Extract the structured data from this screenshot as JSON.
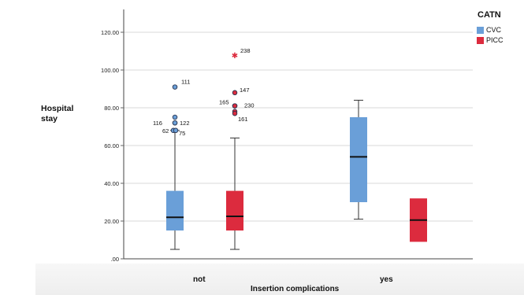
{
  "chart_data": {
    "type": "boxplot",
    "title": "",
    "ylabel": "Hospital stay",
    "xlabel": "Insertion complications",
    "ylim": [
      0,
      130
    ],
    "yticks": [
      0,
      20,
      40,
      60,
      80,
      100,
      120
    ],
    "ytick_labels": [
      ".00",
      "20.00",
      "40.00",
      "60.00",
      "80.00",
      "100.00",
      "120.00"
    ],
    "grid": "horizontal",
    "categories": [
      "not",
      "yes"
    ],
    "legend": {
      "title": "CATN",
      "placement": "top-right",
      "entries": [
        {
          "name": "CVC",
          "color": "#6a9fd8"
        },
        {
          "name": "PICC",
          "color": "#dc2b3e"
        }
      ]
    },
    "series": [
      {
        "name": "CVC",
        "color": "#6a9fd8",
        "boxes": [
          {
            "category": "not",
            "min": 5,
            "q1": 15,
            "median": 22,
            "q3": 36,
            "max": 68,
            "outliers": [
              {
                "value": 91,
                "label": "111",
                "type": "circle"
              },
              {
                "value": 75,
                "label": "",
                "type": "circle"
              },
              {
                "value": 72,
                "label": "116",
                "type": "circle"
              },
              {
                "value": 72,
                "label": "122",
                "type": "circle"
              },
              {
                "value": 68,
                "label": "62",
                "type": "circle"
              },
              {
                "value": 68,
                "label": "75",
                "type": "circle"
              }
            ]
          },
          {
            "category": "yes",
            "min": 21,
            "q1": 30,
            "median": 54,
            "q3": 75,
            "max": 84,
            "outliers": []
          }
        ]
      },
      {
        "name": "PICC",
        "color": "#dc2b3e",
        "boxes": [
          {
            "category": "not",
            "min": 5,
            "q1": 15,
            "median": 22.5,
            "q3": 36,
            "max": 64,
            "outliers": [
              {
                "value": 108,
                "label": "238",
                "type": "star"
              },
              {
                "value": 88,
                "label": "147",
                "type": "circle"
              },
              {
                "value": 81,
                "label": "165",
                "type": "circle"
              },
              {
                "value": 81,
                "label": "230",
                "type": "circle"
              },
              {
                "value": 78,
                "label": "",
                "type": "circle"
              },
              {
                "value": 77,
                "label": "161",
                "type": "circle"
              }
            ]
          },
          {
            "category": "yes",
            "min": 9,
            "q1": 9,
            "median": 20.5,
            "q3": 32,
            "max": 32,
            "outliers": []
          }
        ]
      }
    ]
  }
}
